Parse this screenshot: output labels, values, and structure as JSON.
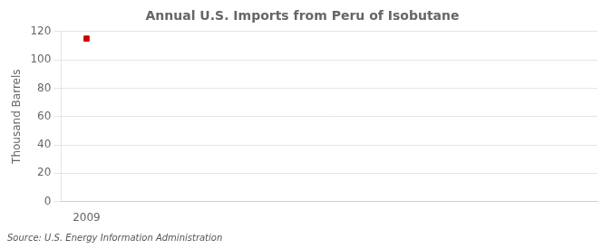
{
  "chart_data": {
    "type": "scatter",
    "title": "Annual U.S. Imports from Peru of Isobutane",
    "ylabel": "Thousand Barrels",
    "annotations": [
      "Source: U.S. Energy Information Administration"
    ],
    "x": [
      2009
    ],
    "values": [
      115
    ],
    "color": "#cc0000",
    "marker": "square",
    "xlim": [
      2008.3,
      2023
    ],
    "xticks": [
      2009
    ],
    "ylim": [
      0,
      120
    ],
    "yticks": [
      0,
      20,
      40,
      60,
      80,
      100,
      120
    ],
    "grid": "y"
  }
}
